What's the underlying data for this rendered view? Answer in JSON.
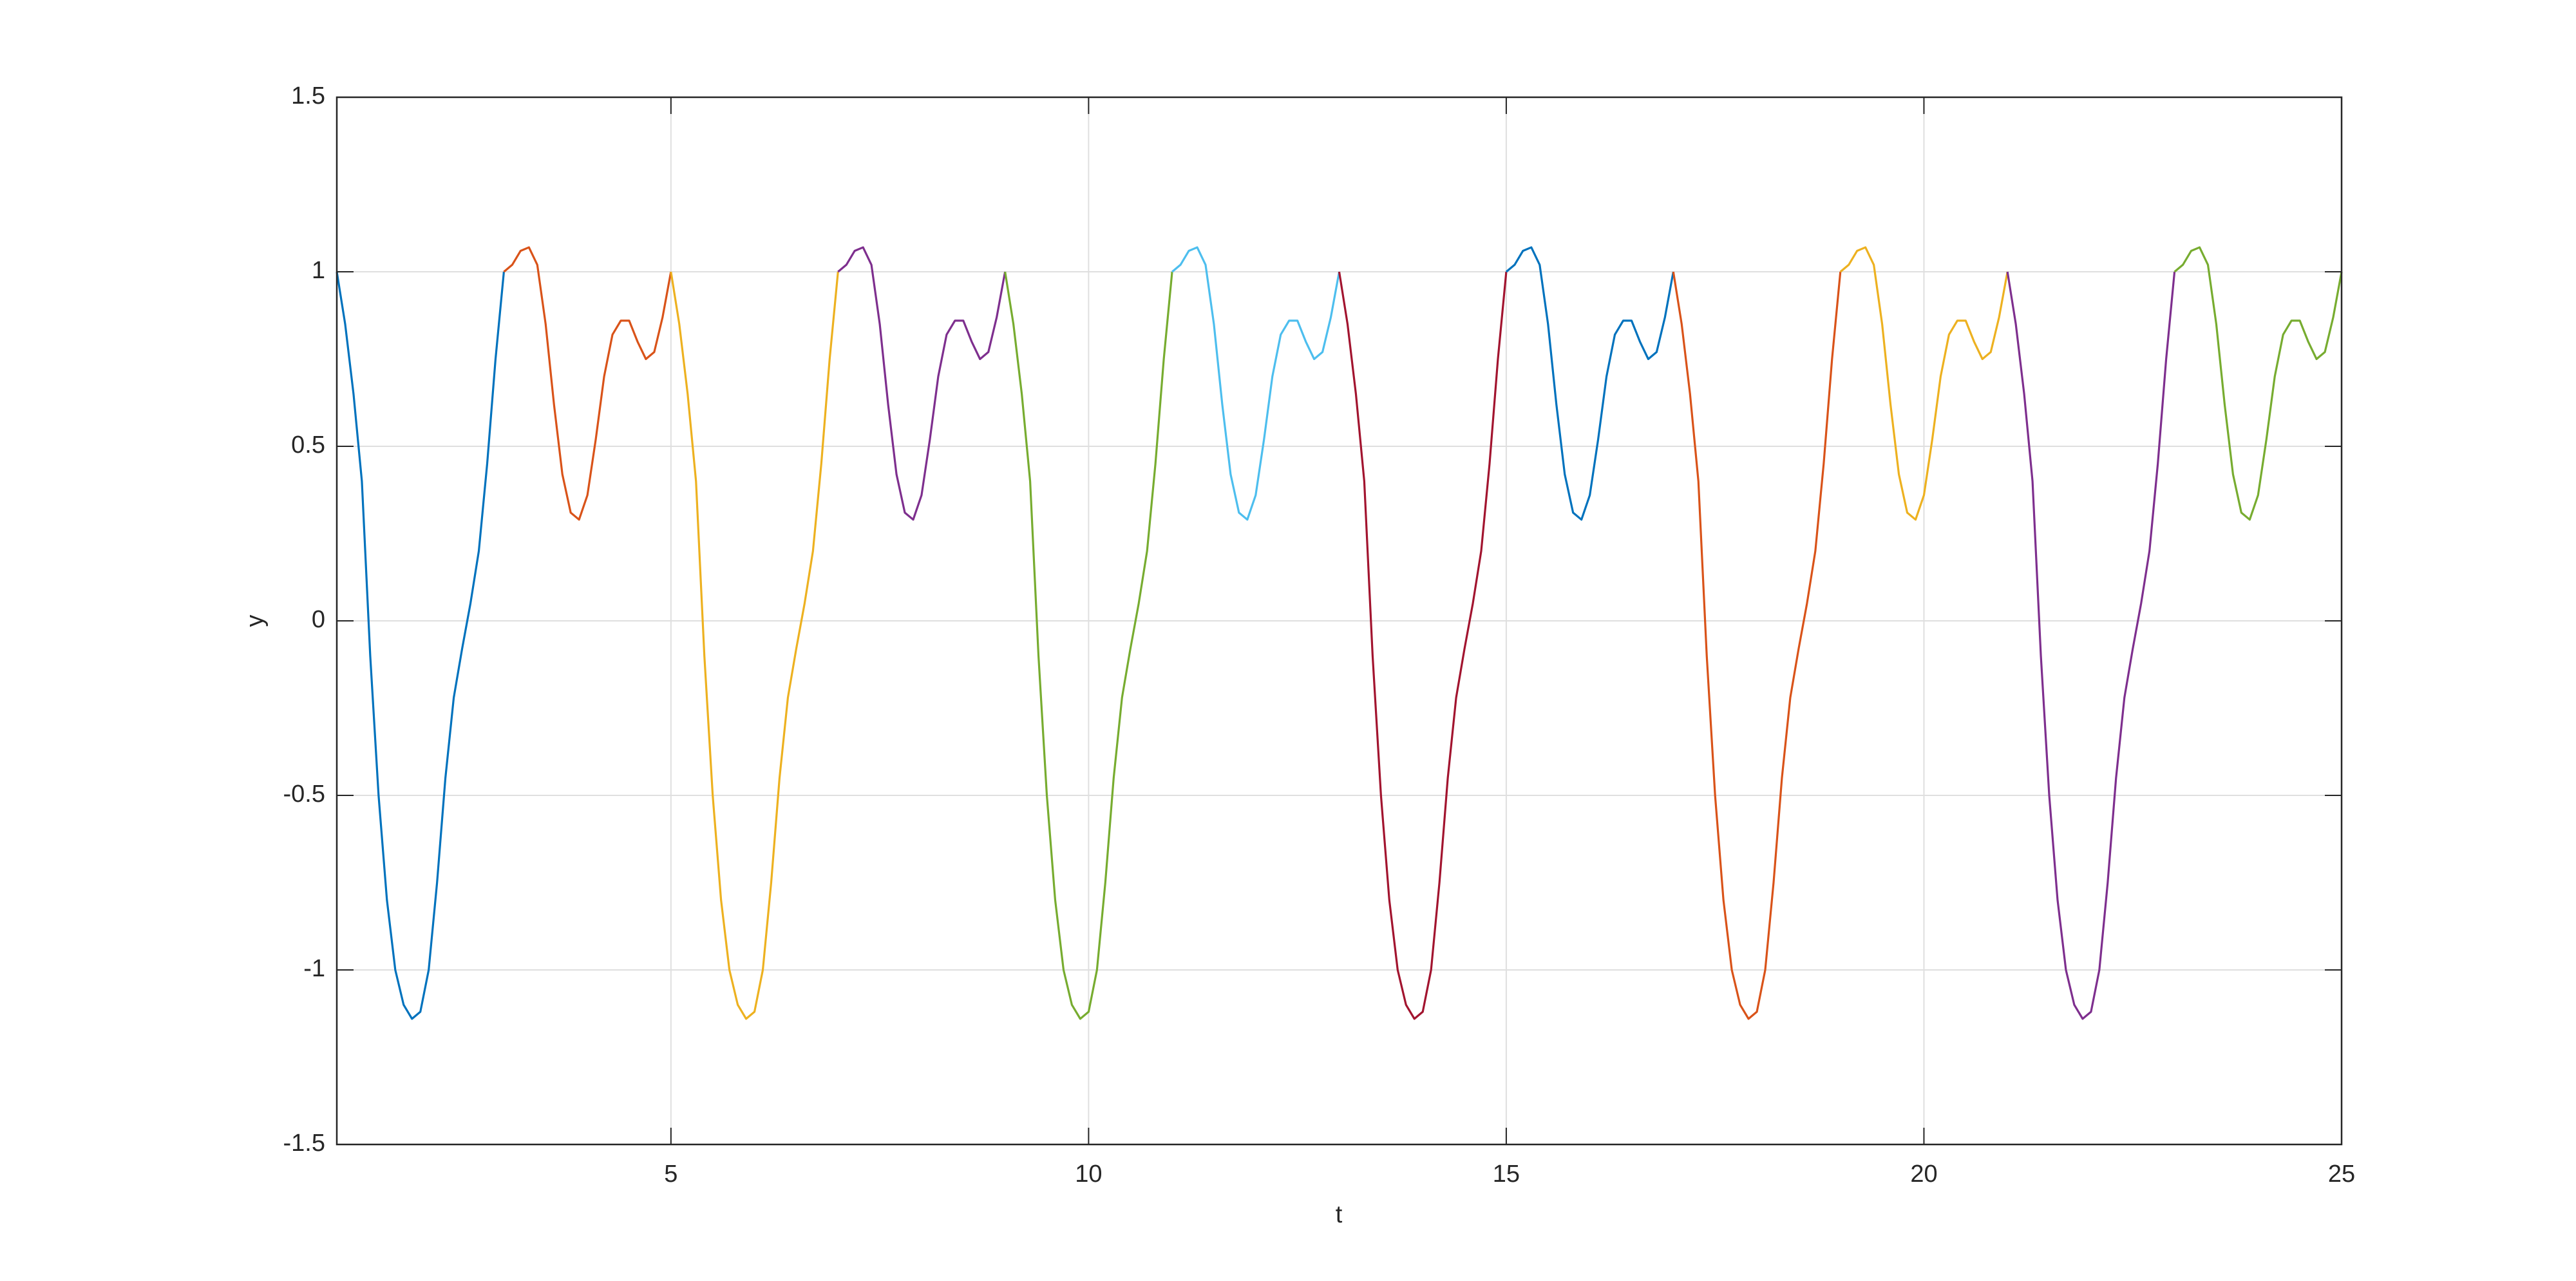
{
  "chart_data": {
    "type": "line",
    "xlabel": "t",
    "ylabel": "y",
    "xlim": [
      1,
      25
    ],
    "ylim": [
      -1.5,
      1.5
    ],
    "xticks": [
      5,
      10,
      15,
      20,
      25
    ],
    "yticks": [
      -1.5,
      -1,
      -0.5,
      0,
      0.5,
      1,
      1.5
    ],
    "grid": true,
    "series": [
      {
        "color": "#0072BD",
        "x": [
          1,
          1.1,
          1.2,
          1.3,
          1.4,
          1.5,
          1.6,
          1.7,
          1.8,
          1.9,
          2,
          2.1,
          2.2,
          2.3,
          2.4,
          2.5,
          2.6,
          2.7,
          2.8,
          2.9,
          3
        ],
        "values": [
          1,
          0.85,
          0.65,
          0.4,
          -0.1,
          -0.5,
          -0.8,
          -1,
          -1.1,
          -1.14,
          -1.12,
          -1,
          -0.75,
          -0.45,
          -0.22,
          -0.08,
          0.05,
          0.2,
          0.45,
          0.75,
          1
        ]
      },
      {
        "color": "#D95319",
        "x": [
          3,
          3.1,
          3.2,
          3.3,
          3.4,
          3.5,
          3.6,
          3.7,
          3.8,
          3.9,
          4,
          4.1,
          4.2,
          4.3,
          4.4,
          4.5,
          4.6,
          4.7,
          4.8,
          4.9,
          5
        ],
        "values": [
          1,
          1.02,
          1.06,
          1.07,
          1.02,
          0.85,
          0.62,
          0.42,
          0.31,
          0.29,
          0.36,
          0.52,
          0.7,
          0.82,
          0.86,
          0.86,
          0.8,
          0.75,
          0.77,
          0.87,
          1
        ]
      },
      {
        "color": "#EDB120",
        "x": [
          5,
          5.1,
          5.2,
          5.3,
          5.4,
          5.5,
          5.6,
          5.7,
          5.8,
          5.9,
          6,
          6.1,
          6.2,
          6.3,
          6.4,
          6.5,
          6.6,
          6.7,
          6.8,
          6.9,
          7
        ],
        "values": [
          1,
          0.85,
          0.65,
          0.4,
          -0.1,
          -0.5,
          -0.8,
          -1,
          -1.1,
          -1.14,
          -1.12,
          -1,
          -0.75,
          -0.45,
          -0.22,
          -0.08,
          0.05,
          0.2,
          0.45,
          0.75,
          1
        ]
      },
      {
        "color": "#7E2F8E",
        "x": [
          7,
          7.1,
          7.2,
          7.3,
          7.4,
          7.5,
          7.6,
          7.7,
          7.8,
          7.9,
          8,
          8.1,
          8.2,
          8.3,
          8.4,
          8.5,
          8.6,
          8.7,
          8.8,
          8.9,
          9
        ],
        "values": [
          1,
          1.02,
          1.06,
          1.07,
          1.02,
          0.85,
          0.62,
          0.42,
          0.31,
          0.29,
          0.36,
          0.52,
          0.7,
          0.82,
          0.86,
          0.86,
          0.8,
          0.75,
          0.77,
          0.87,
          1
        ]
      },
      {
        "color": "#77AC30",
        "x": [
          9,
          9.1,
          9.2,
          9.3,
          9.4,
          9.5,
          9.6,
          9.7,
          9.8,
          9.9,
          10,
          10.1,
          10.2,
          10.3,
          10.4,
          10.5,
          10.6,
          10.7,
          10.8,
          10.9,
          11
        ],
        "values": [
          1,
          0.85,
          0.65,
          0.4,
          -0.1,
          -0.5,
          -0.8,
          -1,
          -1.1,
          -1.14,
          -1.12,
          -1,
          -0.75,
          -0.45,
          -0.22,
          -0.08,
          0.05,
          0.2,
          0.45,
          0.75,
          1
        ]
      },
      {
        "color": "#4DBEEE",
        "x": [
          11,
          11.1,
          11.2,
          11.3,
          11.4,
          11.5,
          11.6,
          11.7,
          11.8,
          11.9,
          12,
          12.1,
          12.2,
          12.3,
          12.4,
          12.5,
          12.6,
          12.7,
          12.8,
          12.9,
          13
        ],
        "values": [
          1,
          1.02,
          1.06,
          1.07,
          1.02,
          0.85,
          0.62,
          0.42,
          0.31,
          0.29,
          0.36,
          0.52,
          0.7,
          0.82,
          0.86,
          0.86,
          0.8,
          0.75,
          0.77,
          0.87,
          1
        ]
      },
      {
        "color": "#A2142F",
        "x": [
          13,
          13.1,
          13.2,
          13.3,
          13.4,
          13.5,
          13.6,
          13.7,
          13.8,
          13.9,
          14,
          14.1,
          14.2,
          14.3,
          14.4,
          14.5,
          14.6,
          14.7,
          14.8,
          14.9,
          15
        ],
        "values": [
          1,
          0.85,
          0.65,
          0.4,
          -0.1,
          -0.5,
          -0.8,
          -1,
          -1.1,
          -1.14,
          -1.12,
          -1,
          -0.75,
          -0.45,
          -0.22,
          -0.08,
          0.05,
          0.2,
          0.45,
          0.75,
          1
        ]
      },
      {
        "color": "#0072BD",
        "x": [
          15,
          15.1,
          15.2,
          15.3,
          15.4,
          15.5,
          15.6,
          15.7,
          15.8,
          15.9,
          16,
          16.1,
          16.2,
          16.3,
          16.4,
          16.5,
          16.6,
          16.7,
          16.8,
          16.9,
          17
        ],
        "values": [
          1,
          1.02,
          1.06,
          1.07,
          1.02,
          0.85,
          0.62,
          0.42,
          0.31,
          0.29,
          0.36,
          0.52,
          0.7,
          0.82,
          0.86,
          0.86,
          0.8,
          0.75,
          0.77,
          0.87,
          1
        ]
      },
      {
        "color": "#D95319",
        "x": [
          17,
          17.1,
          17.2,
          17.3,
          17.4,
          17.5,
          17.6,
          17.7,
          17.8,
          17.9,
          18,
          18.1,
          18.2,
          18.3,
          18.4,
          18.5,
          18.6,
          18.7,
          18.8,
          18.9,
          19
        ],
        "values": [
          1,
          0.85,
          0.65,
          0.4,
          -0.1,
          -0.5,
          -0.8,
          -1,
          -1.1,
          -1.14,
          -1.12,
          -1,
          -0.75,
          -0.45,
          -0.22,
          -0.08,
          0.05,
          0.2,
          0.45,
          0.75,
          1
        ]
      },
      {
        "color": "#EDB120",
        "x": [
          19,
          19.1,
          19.2,
          19.3,
          19.4,
          19.5,
          19.6,
          19.7,
          19.8,
          19.9,
          20,
          20.1,
          20.2,
          20.3,
          20.4,
          20.5,
          20.6,
          20.7,
          20.8,
          20.9,
          21
        ],
        "values": [
          1,
          1.02,
          1.06,
          1.07,
          1.02,
          0.85,
          0.62,
          0.42,
          0.31,
          0.29,
          0.36,
          0.52,
          0.7,
          0.82,
          0.86,
          0.86,
          0.8,
          0.75,
          0.77,
          0.87,
          1
        ]
      },
      {
        "color": "#7E2F8E",
        "x": [
          21,
          21.1,
          21.2,
          21.3,
          21.4,
          21.5,
          21.6,
          21.7,
          21.8,
          21.9,
          22,
          22.1,
          22.2,
          22.3,
          22.4,
          22.5,
          22.6,
          22.7,
          22.8,
          22.9,
          23
        ],
        "values": [
          1,
          0.85,
          0.65,
          0.4,
          -0.1,
          -0.5,
          -0.8,
          -1,
          -1.1,
          -1.14,
          -1.12,
          -1,
          -0.75,
          -0.45,
          -0.22,
          -0.08,
          0.05,
          0.2,
          0.45,
          0.75,
          1
        ]
      },
      {
        "color": "#77AC30",
        "x": [
          23,
          23.1,
          23.2,
          23.3,
          23.4,
          23.5,
          23.6,
          23.7,
          23.8,
          23.9,
          24,
          24.1,
          24.2,
          24.3,
          24.4,
          24.5,
          24.6,
          24.7,
          24.8,
          24.9,
          25
        ],
        "values": [
          1,
          1.02,
          1.06,
          1.07,
          1.02,
          0.85,
          0.62,
          0.42,
          0.31,
          0.29,
          0.36,
          0.52,
          0.7,
          0.82,
          0.86,
          0.86,
          0.8,
          0.75,
          0.77,
          0.87,
          1
        ]
      }
    ]
  }
}
